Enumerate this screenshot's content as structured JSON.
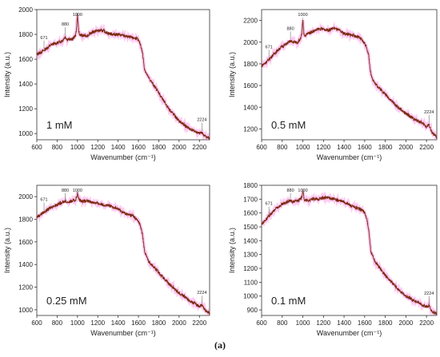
{
  "caption": "(a)",
  "colors": {
    "spectrum": "#7a2a10",
    "band": "#ff66dd",
    "axis": "#333333"
  },
  "chart_data": [
    {
      "type": "line",
      "concentration_label": "1 mM",
      "xlabel": "Wavenumber (cm⁻¹)",
      "ylabel": "Intensity (a.u.)",
      "xlim": [
        600,
        2300
      ],
      "ylim": [
        950,
        2000
      ],
      "xticks": [
        600,
        800,
        1000,
        1200,
        1400,
        1600,
        1800,
        2000,
        2200
      ],
      "yticks": [
        1000,
        1200,
        1400,
        1600,
        1800,
        2000
      ],
      "x": [
        600,
        650,
        700,
        750,
        800,
        850,
        880,
        900,
        950,
        980,
        990,
        1000,
        1010,
        1020,
        1050,
        1100,
        1150,
        1200,
        1250,
        1300,
        1350,
        1400,
        1450,
        1500,
        1550,
        1580,
        1600,
        1620,
        1640,
        1660,
        1680,
        1700,
        1750,
        1800,
        1850,
        1900,
        1950,
        2000,
        2050,
        2100,
        2150,
        2200,
        2224,
        2250,
        2300
      ],
      "y": [
        1640,
        1660,
        1690,
        1720,
        1730,
        1750,
        1780,
        1760,
        1760,
        1790,
        1840,
        1960,
        1840,
        1800,
        1790,
        1790,
        1820,
        1830,
        1830,
        1810,
        1800,
        1800,
        1790,
        1780,
        1770,
        1770,
        1750,
        1720,
        1650,
        1520,
        1480,
        1450,
        1390,
        1330,
        1260,
        1200,
        1150,
        1100,
        1070,
        1040,
        1020,
        1000,
        1010,
        980,
        960
      ],
      "peaks": [
        {
          "x": 671,
          "label": "671"
        },
        {
          "x": 880,
          "label": "880"
        },
        {
          "x": 1000,
          "label": "1000"
        },
        {
          "x": 2224,
          "label": "2224"
        }
      ]
    },
    {
      "type": "line",
      "concentration_label": "0.5 mM",
      "xlabel": "Wavenumber (cm⁻¹)",
      "ylabel": "Intensity (a.u.)",
      "xlim": [
        600,
        2300
      ],
      "ylim": [
        1100,
        2300
      ],
      "xticks": [
        600,
        800,
        1000,
        1200,
        1400,
        1600,
        1800,
        2000,
        2200
      ],
      "yticks": [
        1200,
        1400,
        1600,
        1800,
        2000,
        2200
      ],
      "x": [
        600,
        650,
        700,
        750,
        800,
        850,
        880,
        900,
        950,
        980,
        990,
        1000,
        1010,
        1020,
        1050,
        1100,
        1150,
        1200,
        1250,
        1300,
        1350,
        1400,
        1450,
        1500,
        1550,
        1580,
        1600,
        1620,
        1640,
        1660,
        1680,
        1700,
        1750,
        1800,
        1850,
        1900,
        1950,
        2000,
        2050,
        2100,
        2150,
        2200,
        2224,
        2250,
        2300
      ],
      "y": [
        1780,
        1820,
        1870,
        1920,
        1960,
        1990,
        2010,
        2000,
        2000,
        2030,
        2080,
        2200,
        2080,
        2060,
        2080,
        2100,
        2120,
        2120,
        2110,
        2130,
        2110,
        2080,
        2070,
        2060,
        2040,
        2010,
        1990,
        1950,
        1870,
        1700,
        1660,
        1620,
        1570,
        1520,
        1470,
        1420,
        1380,
        1340,
        1310,
        1280,
        1260,
        1220,
        1240,
        1170,
        1120
      ],
      "peaks": [
        {
          "x": 671,
          "label": "671"
        },
        {
          "x": 880,
          "label": "880"
        },
        {
          "x": 1000,
          "label": "1000"
        },
        {
          "x": 2224,
          "label": "2224"
        }
      ]
    },
    {
      "type": "line",
      "concentration_label": "0.25 mM",
      "xlabel": "Wavenumber (cm⁻¹)",
      "ylabel": "Intensity (a.u.)",
      "xlim": [
        600,
        2300
      ],
      "ylim": [
        950,
        2100
      ],
      "xticks": [
        600,
        800,
        1000,
        1200,
        1400,
        1600,
        1800,
        2000,
        2200
      ],
      "yticks": [
        1000,
        1200,
        1400,
        1600,
        1800,
        2000
      ],
      "x": [
        600,
        650,
        700,
        750,
        800,
        850,
        880,
        900,
        950,
        980,
        990,
        1000,
        1010,
        1020,
        1050,
        1100,
        1150,
        1200,
        1250,
        1300,
        1350,
        1400,
        1450,
        1500,
        1550,
        1580,
        1600,
        1620,
        1640,
        1660,
        1680,
        1700,
        1750,
        1800,
        1850,
        1900,
        1950,
        2000,
        2050,
        2100,
        2150,
        2200,
        2224,
        2250,
        2300
      ],
      "y": [
        1820,
        1850,
        1880,
        1910,
        1930,
        1950,
        1960,
        1950,
        1960,
        1970,
        1990,
        2030,
        1990,
        1970,
        1960,
        1960,
        1950,
        1940,
        1930,
        1920,
        1910,
        1890,
        1860,
        1840,
        1830,
        1800,
        1780,
        1740,
        1660,
        1520,
        1470,
        1430,
        1380,
        1330,
        1280,
        1230,
        1190,
        1150,
        1120,
        1080,
        1060,
        1030,
        1040,
        1000,
        970
      ],
      "peaks": [
        {
          "x": 671,
          "label": "671"
        },
        {
          "x": 880,
          "label": "880"
        },
        {
          "x": 1000,
          "label": "1000"
        },
        {
          "x": 2224,
          "label": "2224"
        }
      ]
    },
    {
      "type": "line",
      "concentration_label": "0.1 mM",
      "xlabel": "Wavenumber (cm⁻¹)",
      "ylabel": "Intensity (a.u.)",
      "xlim": [
        600,
        2300
      ],
      "ylim": [
        860,
        1800
      ],
      "xticks": [
        600,
        800,
        1000,
        1200,
        1400,
        1600,
        1800,
        2000,
        2200
      ],
      "yticks": [
        900,
        1000,
        1100,
        1200,
        1300,
        1400,
        1500,
        1600,
        1700,
        1800
      ],
      "x": [
        600,
        650,
        700,
        750,
        800,
        850,
        880,
        900,
        950,
        980,
        990,
        1000,
        1010,
        1020,
        1050,
        1100,
        1150,
        1200,
        1250,
        1300,
        1350,
        1400,
        1450,
        1500,
        1550,
        1580,
        1600,
        1620,
        1640,
        1660,
        1680,
        1700,
        1750,
        1800,
        1850,
        1900,
        1950,
        2000,
        2050,
        2100,
        2150,
        2200,
        2224,
        2250,
        2300
      ],
      "y": [
        1520,
        1560,
        1600,
        1640,
        1660,
        1680,
        1690,
        1680,
        1690,
        1700,
        1720,
        1760,
        1710,
        1690,
        1690,
        1700,
        1700,
        1710,
        1710,
        1700,
        1690,
        1680,
        1660,
        1640,
        1630,
        1620,
        1600,
        1560,
        1470,
        1320,
        1290,
        1250,
        1200,
        1150,
        1110,
        1070,
        1030,
        1000,
        980,
        960,
        940,
        920,
        930,
        890,
        870
      ],
      "peaks": [
        {
          "x": 671,
          "label": "671"
        },
        {
          "x": 880,
          "label": "880"
        },
        {
          "x": 1000,
          "label": "1000"
        },
        {
          "x": 2224,
          "label": "2224"
        }
      ]
    }
  ]
}
